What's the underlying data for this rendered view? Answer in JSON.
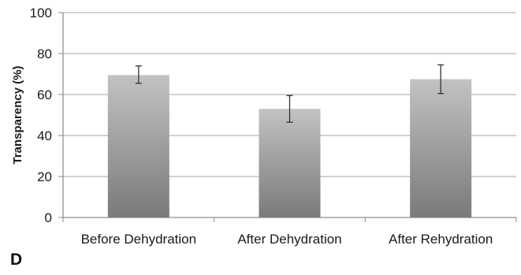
{
  "panel_label": "D",
  "chart_data": {
    "type": "bar",
    "categories": [
      "Before Dehydration",
      "After Dehydration",
      "After Rehydration"
    ],
    "values": [
      69.5,
      53,
      67.5
    ],
    "error_upper": [
      74,
      59.5,
      74.5
    ],
    "error_lower": [
      65.5,
      46.5,
      60.5
    ],
    "title": "",
    "xlabel": "",
    "ylabel": "Transparency (%)",
    "ylim": [
      0,
      100
    ],
    "yticks": [
      0,
      20,
      40,
      60,
      80,
      100
    ],
    "grid": true,
    "legend": "none",
    "bar_gradient_top": "#c2c2c2",
    "bar_gradient_bottom": "#7a7a7a",
    "grid_color": "#b5b5b5"
  }
}
